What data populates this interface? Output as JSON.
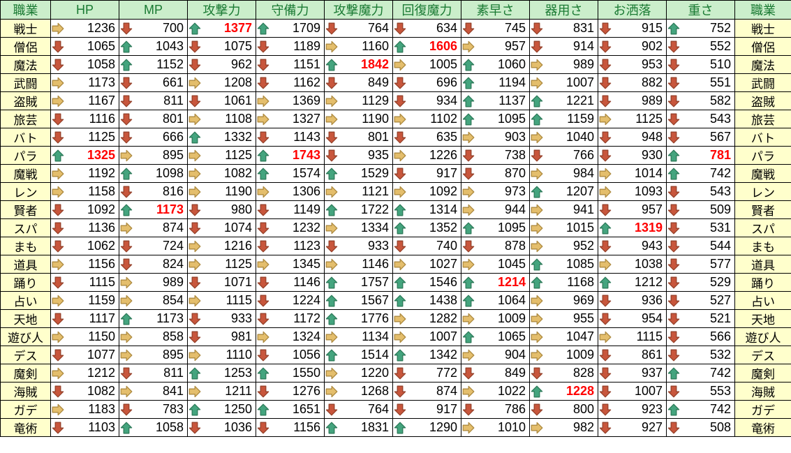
{
  "header": {
    "job_label": "職業",
    "job_label_right": "職業",
    "stats": [
      "HP",
      "MP",
      "攻撃力",
      "守備力",
      "攻撃魔力",
      "回復魔力",
      "素早さ",
      "器用さ",
      "お洒落",
      "重さ"
    ]
  },
  "colors": {
    "header_bg": "#cbeecb",
    "header_text": "#1a7a33",
    "job_bg": "#ffffcc",
    "grid": "#000000",
    "max_value": "#ff0000",
    "value": "#000000"
  },
  "arrow_colors": {
    "u": {
      "fill": "#44a47e",
      "stroke": "#2e7b5a"
    },
    "d": {
      "fill": "#c8563c",
      "stroke": "#96422b"
    },
    "r": {
      "fill": "#e4be6c",
      "stroke": "#ae8b41"
    }
  },
  "rows": [
    {
      "job": "戦士",
      "cells": [
        [
          "r",
          1236
        ],
        [
          "d",
          700
        ],
        [
          "u",
          1377,
          1
        ],
        [
          "u",
          1709
        ],
        [
          "d",
          764
        ],
        [
          "d",
          634
        ],
        [
          "d",
          745
        ],
        [
          "d",
          831
        ],
        [
          "d",
          915
        ],
        [
          "u",
          752
        ]
      ]
    },
    {
      "job": "僧侶",
      "cells": [
        [
          "d",
          1065
        ],
        [
          "u",
          1043
        ],
        [
          "d",
          1075
        ],
        [
          "d",
          1189
        ],
        [
          "r",
          1160
        ],
        [
          "u",
          1606,
          1
        ],
        [
          "r",
          957
        ],
        [
          "d",
          914
        ],
        [
          "d",
          902
        ],
        [
          "d",
          552
        ]
      ]
    },
    {
      "job": "魔法",
      "cells": [
        [
          "d",
          1058
        ],
        [
          "u",
          1152
        ],
        [
          "d",
          962
        ],
        [
          "d",
          1151
        ],
        [
          "u",
          1842,
          1
        ],
        [
          "r",
          1005
        ],
        [
          "u",
          1060
        ],
        [
          "r",
          989
        ],
        [
          "d",
          953
        ],
        [
          "d",
          510
        ]
      ]
    },
    {
      "job": "武闘",
      "cells": [
        [
          "r",
          1173
        ],
        [
          "d",
          661
        ],
        [
          "r",
          1208
        ],
        [
          "d",
          1162
        ],
        [
          "d",
          849
        ],
        [
          "d",
          696
        ],
        [
          "u",
          1194
        ],
        [
          "r",
          1007
        ],
        [
          "d",
          882
        ],
        [
          "d",
          551
        ]
      ]
    },
    {
      "job": "盗賊",
      "cells": [
        [
          "r",
          1167
        ],
        [
          "d",
          811
        ],
        [
          "d",
          1061
        ],
        [
          "r",
          1369
        ],
        [
          "r",
          1129
        ],
        [
          "d",
          934
        ],
        [
          "u",
          1137
        ],
        [
          "u",
          1221
        ],
        [
          "d",
          989
        ],
        [
          "d",
          582
        ]
      ]
    },
    {
      "job": "旅芸",
      "cells": [
        [
          "d",
          1116
        ],
        [
          "d",
          801
        ],
        [
          "r",
          1108
        ],
        [
          "r",
          1327
        ],
        [
          "r",
          1190
        ],
        [
          "r",
          1102
        ],
        [
          "u",
          1095
        ],
        [
          "u",
          1159
        ],
        [
          "r",
          1125
        ],
        [
          "d",
          543
        ]
      ]
    },
    {
      "job": "バト",
      "cells": [
        [
          "d",
          1125
        ],
        [
          "d",
          666
        ],
        [
          "u",
          1332
        ],
        [
          "d",
          1143
        ],
        [
          "d",
          801
        ],
        [
          "d",
          635
        ],
        [
          "r",
          903
        ],
        [
          "r",
          1040
        ],
        [
          "d",
          948
        ],
        [
          "d",
          567
        ]
      ]
    },
    {
      "job": "パラ",
      "cells": [
        [
          "u",
          1325,
          1
        ],
        [
          "r",
          895
        ],
        [
          "r",
          1125
        ],
        [
          "u",
          1743,
          1
        ],
        [
          "d",
          935
        ],
        [
          "r",
          1226
        ],
        [
          "d",
          738
        ],
        [
          "d",
          766
        ],
        [
          "d",
          930
        ],
        [
          "u",
          781,
          1
        ]
      ]
    },
    {
      "job": "魔戦",
      "cells": [
        [
          "r",
          1192
        ],
        [
          "u",
          1098
        ],
        [
          "r",
          1082
        ],
        [
          "u",
          1574
        ],
        [
          "u",
          1529
        ],
        [
          "d",
          917
        ],
        [
          "d",
          870
        ],
        [
          "r",
          984
        ],
        [
          "r",
          1014
        ],
        [
          "u",
          742
        ]
      ]
    },
    {
      "job": "レン",
      "cells": [
        [
          "r",
          1158
        ],
        [
          "d",
          816
        ],
        [
          "r",
          1190
        ],
        [
          "r",
          1306
        ],
        [
          "r",
          1121
        ],
        [
          "r",
          1092
        ],
        [
          "r",
          973
        ],
        [
          "u",
          1207
        ],
        [
          "r",
          1093
        ],
        [
          "d",
          543
        ]
      ]
    },
    {
      "job": "賢者",
      "cells": [
        [
          "d",
          1092
        ],
        [
          "u",
          1173,
          1
        ],
        [
          "d",
          980
        ],
        [
          "d",
          1149
        ],
        [
          "u",
          1722
        ],
        [
          "u",
          1314
        ],
        [
          "r",
          944
        ],
        [
          "r",
          941
        ],
        [
          "d",
          957
        ],
        [
          "d",
          509
        ]
      ]
    },
    {
      "job": "スパ",
      "cells": [
        [
          "d",
          1136
        ],
        [
          "r",
          874
        ],
        [
          "d",
          1074
        ],
        [
          "d",
          1232
        ],
        [
          "r",
          1334
        ],
        [
          "u",
          1352
        ],
        [
          "u",
          1095
        ],
        [
          "r",
          1015
        ],
        [
          "u",
          1319,
          1
        ],
        [
          "d",
          531
        ]
      ]
    },
    {
      "job": "まも",
      "cells": [
        [
          "d",
          1062
        ],
        [
          "d",
          724
        ],
        [
          "r",
          1216
        ],
        [
          "d",
          1123
        ],
        [
          "d",
          933
        ],
        [
          "d",
          740
        ],
        [
          "d",
          878
        ],
        [
          "r",
          952
        ],
        [
          "d",
          943
        ],
        [
          "d",
          544
        ]
      ]
    },
    {
      "job": "道具",
      "cells": [
        [
          "r",
          1156
        ],
        [
          "d",
          824
        ],
        [
          "r",
          1125
        ],
        [
          "r",
          1345
        ],
        [
          "r",
          1146
        ],
        [
          "r",
          1027
        ],
        [
          "r",
          1045
        ],
        [
          "u",
          1085
        ],
        [
          "r",
          1038
        ],
        [
          "d",
          577
        ]
      ]
    },
    {
      "job": "踊り",
      "cells": [
        [
          "d",
          1115
        ],
        [
          "r",
          989
        ],
        [
          "d",
          1071
        ],
        [
          "d",
          1146
        ],
        [
          "u",
          1757
        ],
        [
          "u",
          1546
        ],
        [
          "u",
          1214,
          1
        ],
        [
          "u",
          1168
        ],
        [
          "u",
          1212
        ],
        [
          "d",
          529
        ]
      ]
    },
    {
      "job": "占い",
      "cells": [
        [
          "r",
          1159
        ],
        [
          "r",
          854
        ],
        [
          "r",
          1115
        ],
        [
          "d",
          1224
        ],
        [
          "u",
          1567
        ],
        [
          "u",
          1438
        ],
        [
          "u",
          1064
        ],
        [
          "r",
          969
        ],
        [
          "d",
          936
        ],
        [
          "d",
          527
        ]
      ]
    },
    {
      "job": "天地",
      "cells": [
        [
          "d",
          1117
        ],
        [
          "u",
          1173
        ],
        [
          "d",
          933
        ],
        [
          "d",
          1172
        ],
        [
          "u",
          1776
        ],
        [
          "r",
          1282
        ],
        [
          "r",
          1009
        ],
        [
          "r",
          955
        ],
        [
          "d",
          954
        ],
        [
          "d",
          521
        ]
      ]
    },
    {
      "job": "遊び人",
      "cells": [
        [
          "r",
          1150
        ],
        [
          "r",
          858
        ],
        [
          "d",
          981
        ],
        [
          "r",
          1324
        ],
        [
          "r",
          1134
        ],
        [
          "r",
          1007
        ],
        [
          "u",
          1065
        ],
        [
          "r",
          1047
        ],
        [
          "r",
          1115
        ],
        [
          "d",
          566
        ]
      ]
    },
    {
      "job": "デス",
      "cells": [
        [
          "d",
          1077
        ],
        [
          "r",
          895
        ],
        [
          "r",
          1110
        ],
        [
          "d",
          1056
        ],
        [
          "u",
          1514
        ],
        [
          "u",
          1342
        ],
        [
          "r",
          904
        ],
        [
          "r",
          1009
        ],
        [
          "d",
          861
        ],
        [
          "d",
          532
        ]
      ]
    },
    {
      "job": "魔剣",
      "cells": [
        [
          "r",
          1212
        ],
        [
          "d",
          811
        ],
        [
          "u",
          1253
        ],
        [
          "u",
          1550
        ],
        [
          "r",
          1220
        ],
        [
          "d",
          772
        ],
        [
          "d",
          849
        ],
        [
          "d",
          828
        ],
        [
          "d",
          937
        ],
        [
          "u",
          742
        ]
      ]
    },
    {
      "job": "海賊",
      "cells": [
        [
          "d",
          1082
        ],
        [
          "r",
          841
        ],
        [
          "r",
          1211
        ],
        [
          "d",
          1276
        ],
        [
          "r",
          1268
        ],
        [
          "d",
          874
        ],
        [
          "r",
          1022
        ],
        [
          "u",
          1228,
          1
        ],
        [
          "d",
          1007
        ],
        [
          "d",
          553
        ]
      ]
    },
    {
      "job": "ガデ",
      "cells": [
        [
          "r",
          1183
        ],
        [
          "d",
          783
        ],
        [
          "u",
          1250
        ],
        [
          "u",
          1651
        ],
        [
          "d",
          764
        ],
        [
          "d",
          917
        ],
        [
          "d",
          786
        ],
        [
          "d",
          800
        ],
        [
          "d",
          923
        ],
        [
          "u",
          742
        ]
      ]
    },
    {
      "job": "竜術",
      "cells": [
        [
          "d",
          1103
        ],
        [
          "u",
          1058
        ],
        [
          "d",
          1036
        ],
        [
          "d",
          1156
        ],
        [
          "u",
          1831
        ],
        [
          "u",
          1290
        ],
        [
          "r",
          1010
        ],
        [
          "r",
          982
        ],
        [
          "d",
          927
        ],
        [
          "d",
          508
        ]
      ]
    }
  ]
}
